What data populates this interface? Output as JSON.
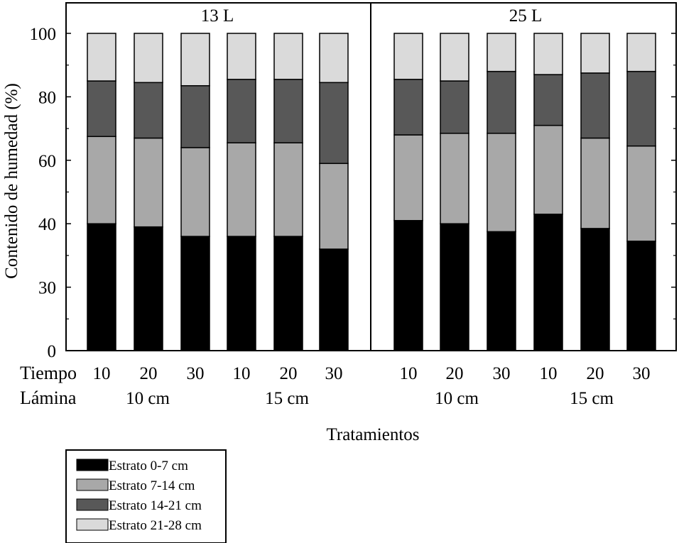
{
  "chart_data": {
    "type": "bar",
    "stacked": true,
    "xlabel": "Tratamientos",
    "ylabel": "Contenido de humedad (%)",
    "y_tick_labels": [
      "0",
      "30",
      "40",
      "60",
      "80",
      "100"
    ],
    "ylim": [
      0,
      100
    ],
    "grid": false,
    "legend_position": "bottom-left",
    "row_labels": {
      "tiempo": "Tiempo",
      "lamina": "Lámina"
    },
    "categories": [
      "10",
      "20",
      "30",
      "10",
      "20",
      "30"
    ],
    "lamina_groups": [
      "10 cm",
      "15 cm"
    ],
    "series_colors": [
      "#000000",
      "#a8a8a8",
      "#585858",
      "#dadada"
    ],
    "panels": [
      {
        "title": "13 L",
        "series": [
          {
            "name": "Estrato 0-7 cm",
            "values": [
              40.0,
              39.0,
              36.0,
              36.0,
              36.0,
              32.0
            ]
          },
          {
            "name": "Estrato 7-14 cm",
            "values": [
              27.5,
              28.0,
              28.0,
              29.5,
              29.5,
              27.0
            ]
          },
          {
            "name": "Estrato 14-21 cm",
            "values": [
              17.5,
              17.5,
              19.5,
              20.0,
              20.0,
              25.5
            ]
          },
          {
            "name": "Estrato 21-28 cm",
            "values": [
              15.0,
              15.5,
              16.5,
              14.5,
              14.5,
              15.5
            ]
          }
        ]
      },
      {
        "title": "25 L",
        "series": [
          {
            "name": "Estrato 0-7 cm",
            "values": [
              41.0,
              40.0,
              37.5,
              43.0,
              38.5,
              34.5
            ]
          },
          {
            "name": "Estrato 7-14 cm",
            "values": [
              27.0,
              28.5,
              31.0,
              28.0,
              28.5,
              30.0
            ]
          },
          {
            "name": "Estrato 14-21 cm",
            "values": [
              17.5,
              16.5,
              19.5,
              16.0,
              20.5,
              23.5
            ]
          },
          {
            "name": "Estrato 21-28 cm",
            "values": [
              14.5,
              15.0,
              12.0,
              13.0,
              12.5,
              12.0
            ]
          }
        ]
      }
    ]
  }
}
